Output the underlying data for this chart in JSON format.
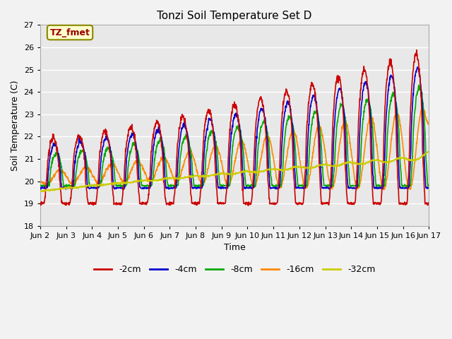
{
  "title": "Tonzi Soil Temperature Set D",
  "xlabel": "Time",
  "ylabel": "Soil Temperature (C)",
  "ylim": [
    18.0,
    27.0
  ],
  "yticks": [
    18.0,
    19.0,
    20.0,
    21.0,
    22.0,
    23.0,
    24.0,
    25.0,
    26.0,
    27.0
  ],
  "xtick_labels": [
    "Jun 2",
    "Jun 3",
    "Jun 4",
    "Jun 5",
    "Jun 6",
    "Jun 7",
    "Jun 8",
    "Jun 9",
    "Jun 10",
    "Jun 11",
    "Jun 12",
    "Jun 13",
    "Jun 14",
    "Jun 15",
    "Jun 16",
    "Jun 17"
  ],
  "legend_labels": [
    "-2cm",
    "-4cm",
    "-8cm",
    "-16cm",
    "-32cm"
  ],
  "legend_colors": [
    "#cc0000",
    "#0000cc",
    "#00aa00",
    "#ff8800",
    "#cccc00"
  ],
  "annotation_text": "TZ_fmet",
  "annotation_bg": "#ffffcc",
  "annotation_border": "#888800",
  "line_width": 1.2,
  "n_points": 1440,
  "days": 15,
  "figsize": [
    6.4,
    4.8
  ],
  "dpi": 100
}
